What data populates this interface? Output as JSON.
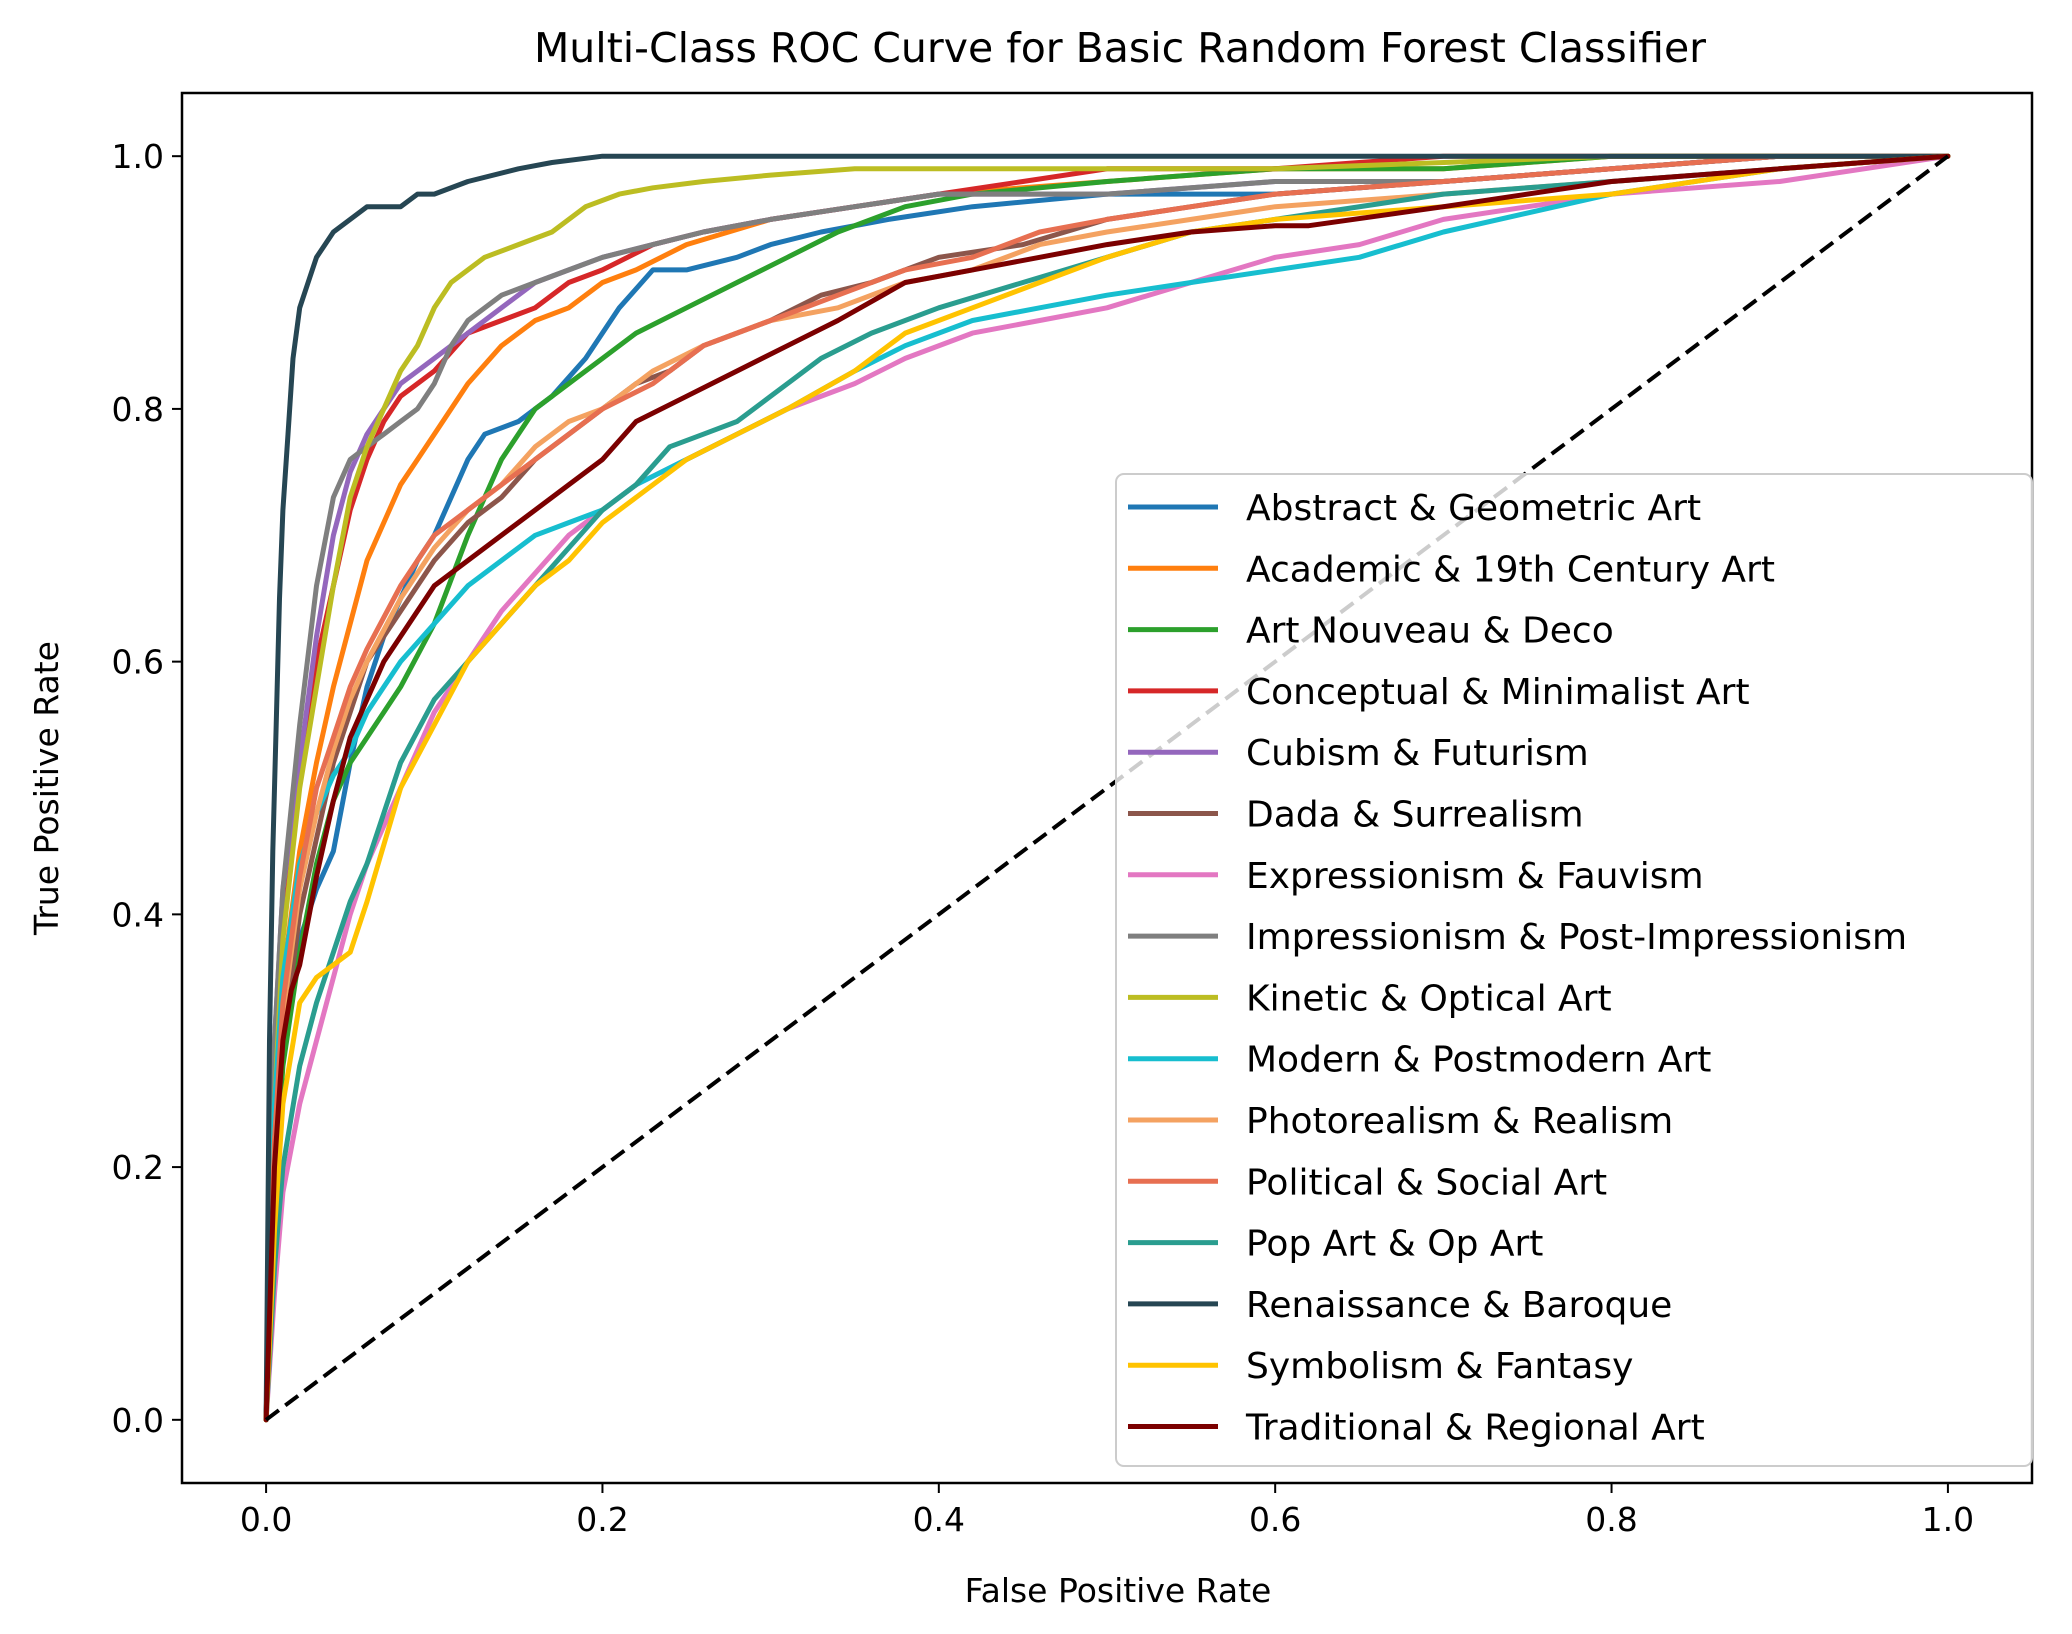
{
  "chart_data": {
    "type": "line",
    "title": "Multi-Class ROC Curve for Basic Random Forest Classifier",
    "xlabel": "False Positive Rate",
    "ylabel": "True Positive Rate",
    "xlim": [
      -0.05,
      1.05
    ],
    "ylim": [
      -0.05,
      1.05
    ],
    "xticks": [
      "0.0",
      "0.2",
      "0.4",
      "0.6",
      "0.8",
      "1.0"
    ],
    "yticks": [
      "0.0",
      "0.2",
      "0.4",
      "0.6",
      "0.8",
      "1.0"
    ],
    "grid": false,
    "legend_position": "lower right",
    "series": [
      {
        "name": "Abstract & Geometric Art",
        "color": "#1f77b4",
        "x": [
          0,
          0.005,
          0.01,
          0.02,
          0.03,
          0.04,
          0.05,
          0.06,
          0.07,
          0.08,
          0.09,
          0.1,
          0.12,
          0.13,
          0.15,
          0.17,
          0.19,
          0.21,
          0.23,
          0.25,
          0.28,
          0.3,
          0.33,
          0.37,
          0.42,
          0.5,
          0.6,
          0.7,
          0.8,
          0.9,
          1.0
        ],
        "y": [
          0,
          0.2,
          0.3,
          0.38,
          0.42,
          0.45,
          0.52,
          0.58,
          0.62,
          0.65,
          0.68,
          0.7,
          0.76,
          0.78,
          0.79,
          0.81,
          0.84,
          0.88,
          0.91,
          0.91,
          0.92,
          0.93,
          0.94,
          0.95,
          0.96,
          0.97,
          0.97,
          0.98,
          0.99,
          1.0,
          1.0
        ]
      },
      {
        "name": "Academic & 19th Century Art",
        "color": "#ff7f0e",
        "x": [
          0,
          0.005,
          0.01,
          0.02,
          0.03,
          0.04,
          0.05,
          0.06,
          0.07,
          0.08,
          0.09,
          0.1,
          0.12,
          0.14,
          0.16,
          0.18,
          0.2,
          0.22,
          0.25,
          0.3,
          0.35,
          0.4,
          0.5,
          0.6,
          0.7,
          0.8,
          0.9,
          1.0
        ],
        "y": [
          0,
          0.25,
          0.35,
          0.45,
          0.52,
          0.58,
          0.63,
          0.68,
          0.71,
          0.74,
          0.76,
          0.78,
          0.82,
          0.85,
          0.87,
          0.88,
          0.9,
          0.91,
          0.93,
          0.95,
          0.96,
          0.97,
          0.98,
          0.99,
          0.99,
          1.0,
          1.0,
          1.0
        ]
      },
      {
        "name": "Art Nouveau & Deco",
        "color": "#2ca02c",
        "x": [
          0,
          0.005,
          0.01,
          0.02,
          0.03,
          0.04,
          0.05,
          0.06,
          0.07,
          0.08,
          0.1,
          0.12,
          0.14,
          0.16,
          0.18,
          0.2,
          0.22,
          0.25,
          0.28,
          0.31,
          0.34,
          0.38,
          0.42,
          0.5,
          0.6,
          0.7,
          0.8,
          0.9,
          1.0
        ],
        "y": [
          0,
          0.18,
          0.28,
          0.37,
          0.44,
          0.49,
          0.52,
          0.54,
          0.56,
          0.58,
          0.63,
          0.7,
          0.76,
          0.8,
          0.82,
          0.84,
          0.86,
          0.88,
          0.9,
          0.92,
          0.94,
          0.96,
          0.97,
          0.98,
          0.99,
          0.99,
          1.0,
          1.0,
          1.0
        ]
      },
      {
        "name": "Conceptual & Minimalist Art",
        "color": "#d62728",
        "x": [
          0,
          0.005,
          0.01,
          0.02,
          0.03,
          0.04,
          0.05,
          0.06,
          0.07,
          0.08,
          0.09,
          0.1,
          0.12,
          0.14,
          0.16,
          0.18,
          0.2,
          0.23,
          0.26,
          0.3,
          0.35,
          0.4,
          0.45,
          0.5,
          0.6,
          0.7,
          0.8,
          0.9,
          1.0
        ],
        "y": [
          0,
          0.28,
          0.4,
          0.52,
          0.6,
          0.66,
          0.72,
          0.76,
          0.79,
          0.81,
          0.82,
          0.83,
          0.86,
          0.87,
          0.88,
          0.9,
          0.91,
          0.93,
          0.94,
          0.95,
          0.96,
          0.97,
          0.98,
          0.99,
          0.99,
          1.0,
          1.0,
          1.0,
          1.0
        ]
      },
      {
        "name": "Cubism & Futurism",
        "color": "#9467bd",
        "x": [
          0,
          0.005,
          0.01,
          0.02,
          0.03,
          0.04,
          0.05,
          0.06,
          0.07,
          0.08,
          0.09,
          0.1,
          0.12,
          0.14,
          0.16,
          0.18,
          0.2,
          0.23,
          0.26,
          0.3,
          0.35,
          0.4,
          0.5,
          0.6,
          0.7,
          0.8,
          0.9,
          1.0
        ],
        "y": [
          0,
          0.3,
          0.42,
          0.52,
          0.62,
          0.7,
          0.75,
          0.78,
          0.8,
          0.82,
          0.83,
          0.84,
          0.86,
          0.88,
          0.9,
          0.91,
          0.92,
          0.93,
          0.94,
          0.95,
          0.96,
          0.97,
          0.97,
          0.98,
          0.98,
          0.99,
          1.0,
          1.0
        ]
      },
      {
        "name": "Dada & Surrealism",
        "color": "#8c564b",
        "x": [
          0,
          0.005,
          0.01,
          0.02,
          0.03,
          0.04,
          0.05,
          0.06,
          0.08,
          0.1,
          0.12,
          0.14,
          0.16,
          0.18,
          0.2,
          0.22,
          0.24,
          0.26,
          0.28,
          0.3,
          0.33,
          0.36,
          0.4,
          0.45,
          0.5,
          0.55,
          0.6,
          0.7,
          0.8,
          0.9,
          1.0
        ],
        "y": [
          0,
          0.2,
          0.3,
          0.4,
          0.46,
          0.52,
          0.56,
          0.6,
          0.64,
          0.68,
          0.71,
          0.73,
          0.76,
          0.78,
          0.8,
          0.82,
          0.83,
          0.85,
          0.86,
          0.87,
          0.89,
          0.9,
          0.92,
          0.93,
          0.95,
          0.96,
          0.97,
          0.98,
          0.99,
          1.0,
          1.0
        ]
      },
      {
        "name": "Expressionism & Fauvism",
        "color": "#e377c2",
        "x": [
          0,
          0.005,
          0.01,
          0.02,
          0.03,
          0.04,
          0.05,
          0.06,
          0.08,
          0.1,
          0.12,
          0.14,
          0.16,
          0.18,
          0.2,
          0.22,
          0.25,
          0.28,
          0.31,
          0.35,
          0.38,
          0.42,
          0.46,
          0.5,
          0.55,
          0.6,
          0.65,
          0.7,
          0.8,
          0.9,
          1.0
        ],
        "y": [
          0,
          0.1,
          0.18,
          0.25,
          0.3,
          0.35,
          0.4,
          0.44,
          0.5,
          0.56,
          0.6,
          0.64,
          0.67,
          0.7,
          0.72,
          0.74,
          0.76,
          0.78,
          0.8,
          0.82,
          0.84,
          0.86,
          0.87,
          0.88,
          0.9,
          0.92,
          0.93,
          0.95,
          0.97,
          0.98,
          1.0
        ]
      },
      {
        "name": "Impressionism & Post-Impressionism",
        "color": "#7f7f7f",
        "x": [
          0,
          0.005,
          0.01,
          0.02,
          0.03,
          0.04,
          0.05,
          0.06,
          0.07,
          0.08,
          0.09,
          0.1,
          0.11,
          0.12,
          0.14,
          0.16,
          0.18,
          0.2,
          0.23,
          0.26,
          0.3,
          0.35,
          0.4,
          0.5,
          0.6,
          0.7,
          0.8,
          0.9,
          1.0
        ],
        "y": [
          0,
          0.3,
          0.42,
          0.55,
          0.66,
          0.73,
          0.76,
          0.77,
          0.78,
          0.79,
          0.8,
          0.82,
          0.85,
          0.87,
          0.89,
          0.9,
          0.91,
          0.92,
          0.93,
          0.94,
          0.95,
          0.96,
          0.97,
          0.97,
          0.98,
          0.98,
          0.99,
          1.0,
          1.0
        ]
      },
      {
        "name": "Kinetic & Optical Art",
        "color": "#bcbd22",
        "x": [
          0,
          0.005,
          0.01,
          0.02,
          0.03,
          0.04,
          0.05,
          0.06,
          0.07,
          0.08,
          0.09,
          0.1,
          0.11,
          0.12,
          0.13,
          0.15,
          0.17,
          0.19,
          0.21,
          0.23,
          0.26,
          0.3,
          0.35,
          0.4,
          0.5,
          0.6,
          0.8,
          1.0
        ],
        "y": [
          0,
          0.25,
          0.38,
          0.5,
          0.58,
          0.66,
          0.73,
          0.77,
          0.8,
          0.83,
          0.85,
          0.88,
          0.9,
          0.91,
          0.92,
          0.93,
          0.94,
          0.96,
          0.97,
          0.975,
          0.98,
          0.985,
          0.99,
          0.99,
          0.99,
          0.99,
          1.0,
          1.0
        ]
      },
      {
        "name": "Modern & Postmodern Art",
        "color": "#17becf",
        "x": [
          0,
          0.005,
          0.01,
          0.02,
          0.03,
          0.04,
          0.05,
          0.06,
          0.08,
          0.1,
          0.12,
          0.14,
          0.16,
          0.18,
          0.2,
          0.22,
          0.25,
          0.28,
          0.31,
          0.35,
          0.38,
          0.42,
          0.46,
          0.5,
          0.55,
          0.6,
          0.65,
          0.7,
          0.8,
          0.9,
          1.0
        ],
        "y": [
          0,
          0.25,
          0.35,
          0.44,
          0.48,
          0.51,
          0.53,
          0.56,
          0.6,
          0.63,
          0.66,
          0.68,
          0.7,
          0.71,
          0.72,
          0.74,
          0.76,
          0.78,
          0.8,
          0.83,
          0.85,
          0.87,
          0.88,
          0.89,
          0.9,
          0.91,
          0.92,
          0.94,
          0.97,
          0.99,
          1.0
        ]
      },
      {
        "name": "Photorealism & Realism",
        "color": "#f4a261",
        "x": [
          0,
          0.005,
          0.01,
          0.02,
          0.03,
          0.04,
          0.05,
          0.06,
          0.08,
          0.1,
          0.12,
          0.14,
          0.16,
          0.18,
          0.2,
          0.23,
          0.26,
          0.3,
          0.34,
          0.38,
          0.42,
          0.46,
          0.5,
          0.55,
          0.6,
          0.7,
          0.8,
          0.9,
          1.0
        ],
        "y": [
          0,
          0.22,
          0.32,
          0.42,
          0.48,
          0.53,
          0.57,
          0.6,
          0.65,
          0.69,
          0.72,
          0.74,
          0.77,
          0.79,
          0.8,
          0.83,
          0.85,
          0.87,
          0.88,
          0.9,
          0.91,
          0.93,
          0.94,
          0.95,
          0.96,
          0.97,
          0.98,
          0.99,
          1.0
        ]
      },
      {
        "name": "Political & Social Art",
        "color": "#e76f51",
        "x": [
          0,
          0.005,
          0.01,
          0.02,
          0.03,
          0.04,
          0.05,
          0.06,
          0.08,
          0.1,
          0.12,
          0.14,
          0.16,
          0.18,
          0.2,
          0.23,
          0.26,
          0.3,
          0.34,
          0.38,
          0.42,
          0.46,
          0.5,
          0.55,
          0.6,
          0.7,
          0.8,
          0.9,
          1.0
        ],
        "y": [
          0,
          0.22,
          0.33,
          0.43,
          0.5,
          0.54,
          0.58,
          0.61,
          0.66,
          0.7,
          0.72,
          0.74,
          0.76,
          0.78,
          0.8,
          0.82,
          0.85,
          0.87,
          0.89,
          0.91,
          0.92,
          0.94,
          0.95,
          0.96,
          0.97,
          0.98,
          0.99,
          1.0,
          1.0
        ]
      },
      {
        "name": "Pop Art & Op Art",
        "color": "#2a9d8f",
        "x": [
          0,
          0.005,
          0.01,
          0.02,
          0.03,
          0.04,
          0.05,
          0.06,
          0.08,
          0.1,
          0.12,
          0.14,
          0.16,
          0.18,
          0.2,
          0.22,
          0.24,
          0.26,
          0.28,
          0.3,
          0.33,
          0.36,
          0.4,
          0.45,
          0.5,
          0.55,
          0.6,
          0.7,
          0.8,
          0.9,
          1.0
        ],
        "y": [
          0,
          0.12,
          0.2,
          0.28,
          0.33,
          0.37,
          0.41,
          0.44,
          0.52,
          0.57,
          0.6,
          0.63,
          0.66,
          0.69,
          0.72,
          0.74,
          0.77,
          0.78,
          0.79,
          0.81,
          0.84,
          0.86,
          0.88,
          0.9,
          0.92,
          0.94,
          0.95,
          0.97,
          0.98,
          0.99,
          1.0
        ]
      },
      {
        "name": "Renaissance & Baroque",
        "color": "#264653",
        "x": [
          0,
          0.002,
          0.004,
          0.006,
          0.008,
          0.01,
          0.013,
          0.016,
          0.02,
          0.025,
          0.03,
          0.035,
          0.04,
          0.05,
          0.06,
          0.07,
          0.08,
          0.09,
          0.1,
          0.12,
          0.15,
          0.17,
          0.2,
          1.0
        ],
        "y": [
          0,
          0.3,
          0.45,
          0.55,
          0.65,
          0.72,
          0.78,
          0.84,
          0.88,
          0.9,
          0.92,
          0.93,
          0.94,
          0.95,
          0.96,
          0.96,
          0.96,
          0.97,
          0.97,
          0.98,
          0.99,
          0.995,
          1.0,
          1.0
        ]
      },
      {
        "name": "Symbolism & Fantasy",
        "color": "#ffc300",
        "x": [
          0,
          0.005,
          0.01,
          0.02,
          0.03,
          0.04,
          0.05,
          0.06,
          0.08,
          0.1,
          0.12,
          0.14,
          0.16,
          0.18,
          0.2,
          0.22,
          0.25,
          0.28,
          0.31,
          0.35,
          0.38,
          0.42,
          0.46,
          0.5,
          0.55,
          0.6,
          0.7,
          0.8,
          0.9,
          1.0
        ],
        "y": [
          0,
          0.15,
          0.25,
          0.33,
          0.35,
          0.36,
          0.37,
          0.41,
          0.5,
          0.55,
          0.6,
          0.63,
          0.66,
          0.68,
          0.71,
          0.73,
          0.76,
          0.78,
          0.8,
          0.83,
          0.86,
          0.88,
          0.9,
          0.92,
          0.94,
          0.95,
          0.96,
          0.97,
          0.99,
          1.0
        ]
      },
      {
        "name": "Traditional & Regional Art",
        "color": "#7b0000",
        "x": [
          0,
          0.005,
          0.01,
          0.015,
          0.02,
          0.03,
          0.04,
          0.05,
          0.06,
          0.07,
          0.08,
          0.1,
          0.12,
          0.14,
          0.16,
          0.18,
          0.2,
          0.22,
          0.25,
          0.28,
          0.31,
          0.34,
          0.38,
          0.42,
          0.46,
          0.5,
          0.55,
          0.6,
          0.62,
          0.7,
          0.8,
          0.9,
          1.0
        ],
        "y": [
          0,
          0.2,
          0.3,
          0.34,
          0.36,
          0.43,
          0.49,
          0.54,
          0.57,
          0.6,
          0.62,
          0.66,
          0.68,
          0.7,
          0.72,
          0.74,
          0.76,
          0.79,
          0.81,
          0.83,
          0.85,
          0.87,
          0.9,
          0.91,
          0.92,
          0.93,
          0.94,
          0.945,
          0.945,
          0.96,
          0.98,
          0.99,
          1.0
        ]
      }
    ],
    "reference_line": {
      "x": [
        0,
        1
      ],
      "y": [
        0,
        1
      ],
      "color": "#000000",
      "style": "dashed"
    }
  }
}
